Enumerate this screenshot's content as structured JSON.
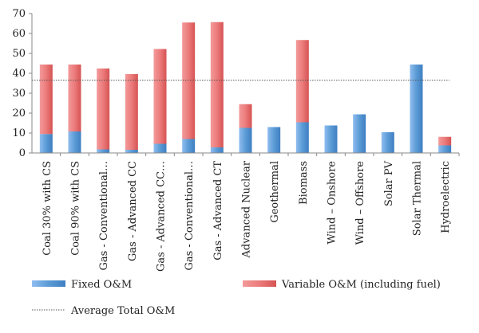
{
  "chart_data": {
    "type": "bar",
    "stacked": true,
    "categories": [
      "Coal 30% with CS",
      "Coal 90% with CS",
      "Gas - Conventional…",
      "Gas - Advanced CC",
      "Gas - Advanced CC…",
      "Gas - Conventional…",
      "Gas - Advanced CT",
      "Advanced Nuclear",
      "Geothermal",
      "Biomass",
      "Wind – Onshore",
      "Wind – Offshore",
      "Solar PV",
      "Solar Thermal",
      "Hydroelectric"
    ],
    "series": [
      {
        "name": "Fixed O&M",
        "color": "#5b9bd5",
        "values": [
          9.5,
          10.8,
          1.8,
          1.6,
          4.6,
          7.0,
          2.8,
          12.6,
          13.0,
          15.4,
          13.8,
          19.4,
          10.4,
          44.4,
          3.8
        ]
      },
      {
        "name": "Variable O&M (including fuel)",
        "color": "#e46666",
        "values": [
          34.9,
          33.6,
          40.6,
          38.0,
          47.6,
          58.5,
          62.9,
          11.9,
          0,
          41.3,
          0,
          0,
          0,
          0,
          4.3
        ]
      }
    ],
    "reference_line": {
      "name": "Average Total O&M",
      "value": 36.5
    },
    "ylim": [
      0,
      70
    ],
    "yticks": [
      0,
      10,
      20,
      30,
      40,
      50,
      60,
      70
    ],
    "legend_position": "bottom",
    "grid": false,
    "title": "",
    "xlabel": "",
    "ylabel": ""
  }
}
